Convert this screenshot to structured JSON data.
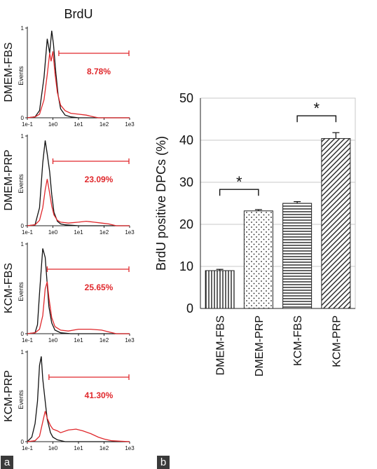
{
  "panel_labels": {
    "a": "a",
    "b": "b"
  },
  "colors": {
    "sample": "#e0282c",
    "control": "#111111",
    "axis": "#222222",
    "grid": "#c8c8c8"
  },
  "chart_data": [
    {
      "type": "line",
      "title": "BrdU",
      "x_scale": "log",
      "x_tick_labels": [
        "1e-1",
        "1e0",
        "1e1",
        "1e2",
        "1e3"
      ],
      "y_tick_labels": [
        "0",
        "1"
      ],
      "ylabel": "Events",
      "panels": [
        {
          "name": "DMEM-FBS",
          "gate_percent": "8.78%",
          "gate_from": 1.7,
          "control": {
            "x": [
              0.1,
              0.2,
              0.3,
              0.45,
              0.6,
              0.75,
              0.9,
              1.05,
              1.3,
              1.6,
              2.0,
              3.0,
              5.0,
              10,
              100,
              1000
            ],
            "y": [
              0,
              0.01,
              0.08,
              0.45,
              0.88,
              0.72,
              0.97,
              0.82,
              0.5,
              0.25,
              0.1,
              0.03,
              0.01,
              0,
              0,
              0
            ]
          },
          "sample": {
            "x": [
              0.1,
              0.2,
              0.3,
              0.45,
              0.6,
              0.75,
              0.85,
              1.0,
              1.2,
              1.5,
              2.0,
              3.0,
              5.0,
              10,
              20,
              40,
              60,
              1000
            ],
            "y": [
              0,
              0.01,
              0.04,
              0.2,
              0.48,
              0.72,
              0.63,
              0.74,
              0.5,
              0.28,
              0.14,
              0.08,
              0.05,
              0.04,
              0.03,
              0.01,
              0,
              0
            ]
          }
        },
        {
          "name": "DMEM-PRP",
          "gate_percent": "23.09%",
          "gate_from": 1.0,
          "control": {
            "x": [
              0.1,
              0.2,
              0.3,
              0.4,
              0.5,
              0.6,
              0.75,
              0.9,
              1.1,
              1.5,
              2.0,
              3.0,
              10,
              1000
            ],
            "y": [
              0,
              0.01,
              0.2,
              0.7,
              0.95,
              0.8,
              0.6,
              0.35,
              0.15,
              0.05,
              0.02,
              0.01,
              0,
              0
            ]
          },
          "sample": {
            "x": [
              0.1,
              0.2,
              0.3,
              0.4,
              0.5,
              0.6,
              0.75,
              0.9,
              1.1,
              1.5,
              2.0,
              4.0,
              10,
              20,
              40,
              80,
              150,
              300,
              1000
            ],
            "y": [
              0,
              0.01,
              0.06,
              0.2,
              0.4,
              0.52,
              0.36,
              0.22,
              0.12,
              0.06,
              0.04,
              0.03,
              0.04,
              0.05,
              0.04,
              0.03,
              0.02,
              0,
              0
            ]
          }
        },
        {
          "name": "KCM-FBS",
          "gate_percent": "25.65%",
          "gate_from": 0.6,
          "control": {
            "x": [
              0.1,
              0.2,
              0.25,
              0.3,
              0.4,
              0.5,
              0.6,
              0.7,
              0.9,
              1.2,
              2.0,
              5.0,
              1000
            ],
            "y": [
              0,
              0.01,
              0.1,
              0.45,
              0.95,
              0.85,
              0.55,
              0.3,
              0.12,
              0.04,
              0.01,
              0,
              0
            ]
          },
          "sample": {
            "x": [
              0.1,
              0.2,
              0.3,
              0.4,
              0.5,
              0.6,
              0.7,
              0.9,
              1.2,
              2.0,
              4.0,
              10,
              30,
              80,
              150,
              300,
              1000
            ],
            "y": [
              0,
              0.01,
              0.05,
              0.2,
              0.5,
              0.58,
              0.4,
              0.18,
              0.08,
              0.04,
              0.03,
              0.05,
              0.05,
              0.04,
              0.02,
              0,
              0
            ]
          }
        },
        {
          "name": "KCM-PRP",
          "gate_percent": "41.30%",
          "gate_from": 0.7,
          "control": {
            "x": [
              0.1,
              0.15,
              0.2,
              0.25,
              0.3,
              0.35,
              0.4,
              0.5,
              0.6,
              0.8,
              1.0,
              1.5,
              3.0,
              1000
            ],
            "y": [
              0,
              0.05,
              0.2,
              0.45,
              0.85,
              0.95,
              0.7,
              0.45,
              0.25,
              0.1,
              0.05,
              0.02,
              0,
              0
            ]
          },
          "sample": {
            "x": [
              0.1,
              0.2,
              0.3,
              0.4,
              0.5,
              0.6,
              0.8,
              1.0,
              1.5,
              2.0,
              4.0,
              8.0,
              15,
              30,
              60,
              100,
              200,
              1000
            ],
            "y": [
              0,
              0.01,
              0.06,
              0.22,
              0.34,
              0.26,
              0.18,
              0.14,
              0.12,
              0.1,
              0.13,
              0.14,
              0.12,
              0.09,
              0.05,
              0.03,
              0.01,
              0
            ]
          }
        }
      ]
    },
    {
      "type": "bar",
      "categories": [
        "DMEM-FBS",
        "DMEM-PRP",
        "KCM-FBS",
        "KCM-PRP"
      ],
      "values": [
        9.0,
        23.2,
        25.0,
        40.4
      ],
      "errors": [
        0.3,
        0.3,
        0.4,
        1.4
      ],
      "patterns": [
        "vertical-lines",
        "dots",
        "horizontal-lines",
        "diagonal-lines"
      ],
      "ylabel": "BrdU positive DPCs (%)",
      "ylim": [
        0,
        50
      ],
      "yticks": [
        0,
        10,
        20,
        30,
        40,
        50
      ],
      "grid": true,
      "significance": [
        {
          "from": 0,
          "to": 1,
          "label": "*",
          "y": 28.3
        },
        {
          "from": 2,
          "to": 3,
          "label": "*",
          "y": 45.8
        }
      ]
    }
  ]
}
